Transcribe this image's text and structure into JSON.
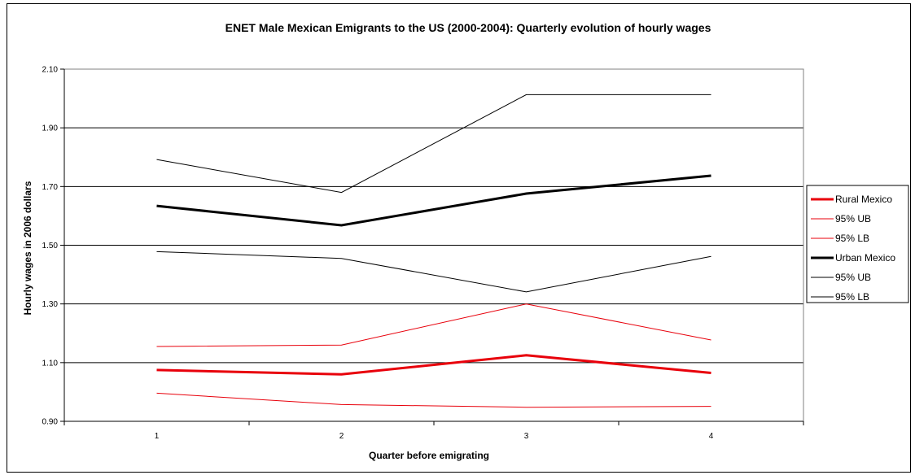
{
  "chart_data": {
    "type": "line",
    "title": "ENET Male Mexican Emigrants to the US (2000-2004): Quarterly evolution of hourly wages",
    "xlabel": "Quarter before emigrating",
    "ylabel": "Hourly wages in 2006 dollars",
    "categories": [
      "1",
      "2",
      "3",
      "4"
    ],
    "ylim": [
      0.9,
      2.1
    ],
    "yticks": [
      "0.90",
      "1.10",
      "1.30",
      "1.50",
      "1.70",
      "1.90",
      "2.10"
    ],
    "grid": true,
    "legend_position": "right",
    "series": [
      {
        "name": "Rural Mexico",
        "color": "#e8000b",
        "bold": true,
        "values": [
          1.075,
          1.06,
          1.125,
          1.065
        ]
      },
      {
        "name": "95% UB",
        "color": "#e8000b",
        "bold": false,
        "values": [
          1.155,
          1.16,
          1.3,
          1.177
        ]
      },
      {
        "name": "95% LB",
        "color": "#e8000b",
        "bold": false,
        "values": [
          0.996,
          0.957,
          0.948,
          0.951
        ]
      },
      {
        "name": "Urban Mexico",
        "color": "#000000",
        "bold": true,
        "values": [
          1.634,
          1.568,
          1.676,
          1.737
        ]
      },
      {
        "name": "95% UB",
        "color": "#000000",
        "bold": false,
        "values": [
          1.792,
          1.68,
          2.013,
          2.013
        ]
      },
      {
        "name": "95% LB",
        "color": "#000000",
        "bold": false,
        "values": [
          1.478,
          1.455,
          1.341,
          1.462
        ]
      }
    ]
  }
}
